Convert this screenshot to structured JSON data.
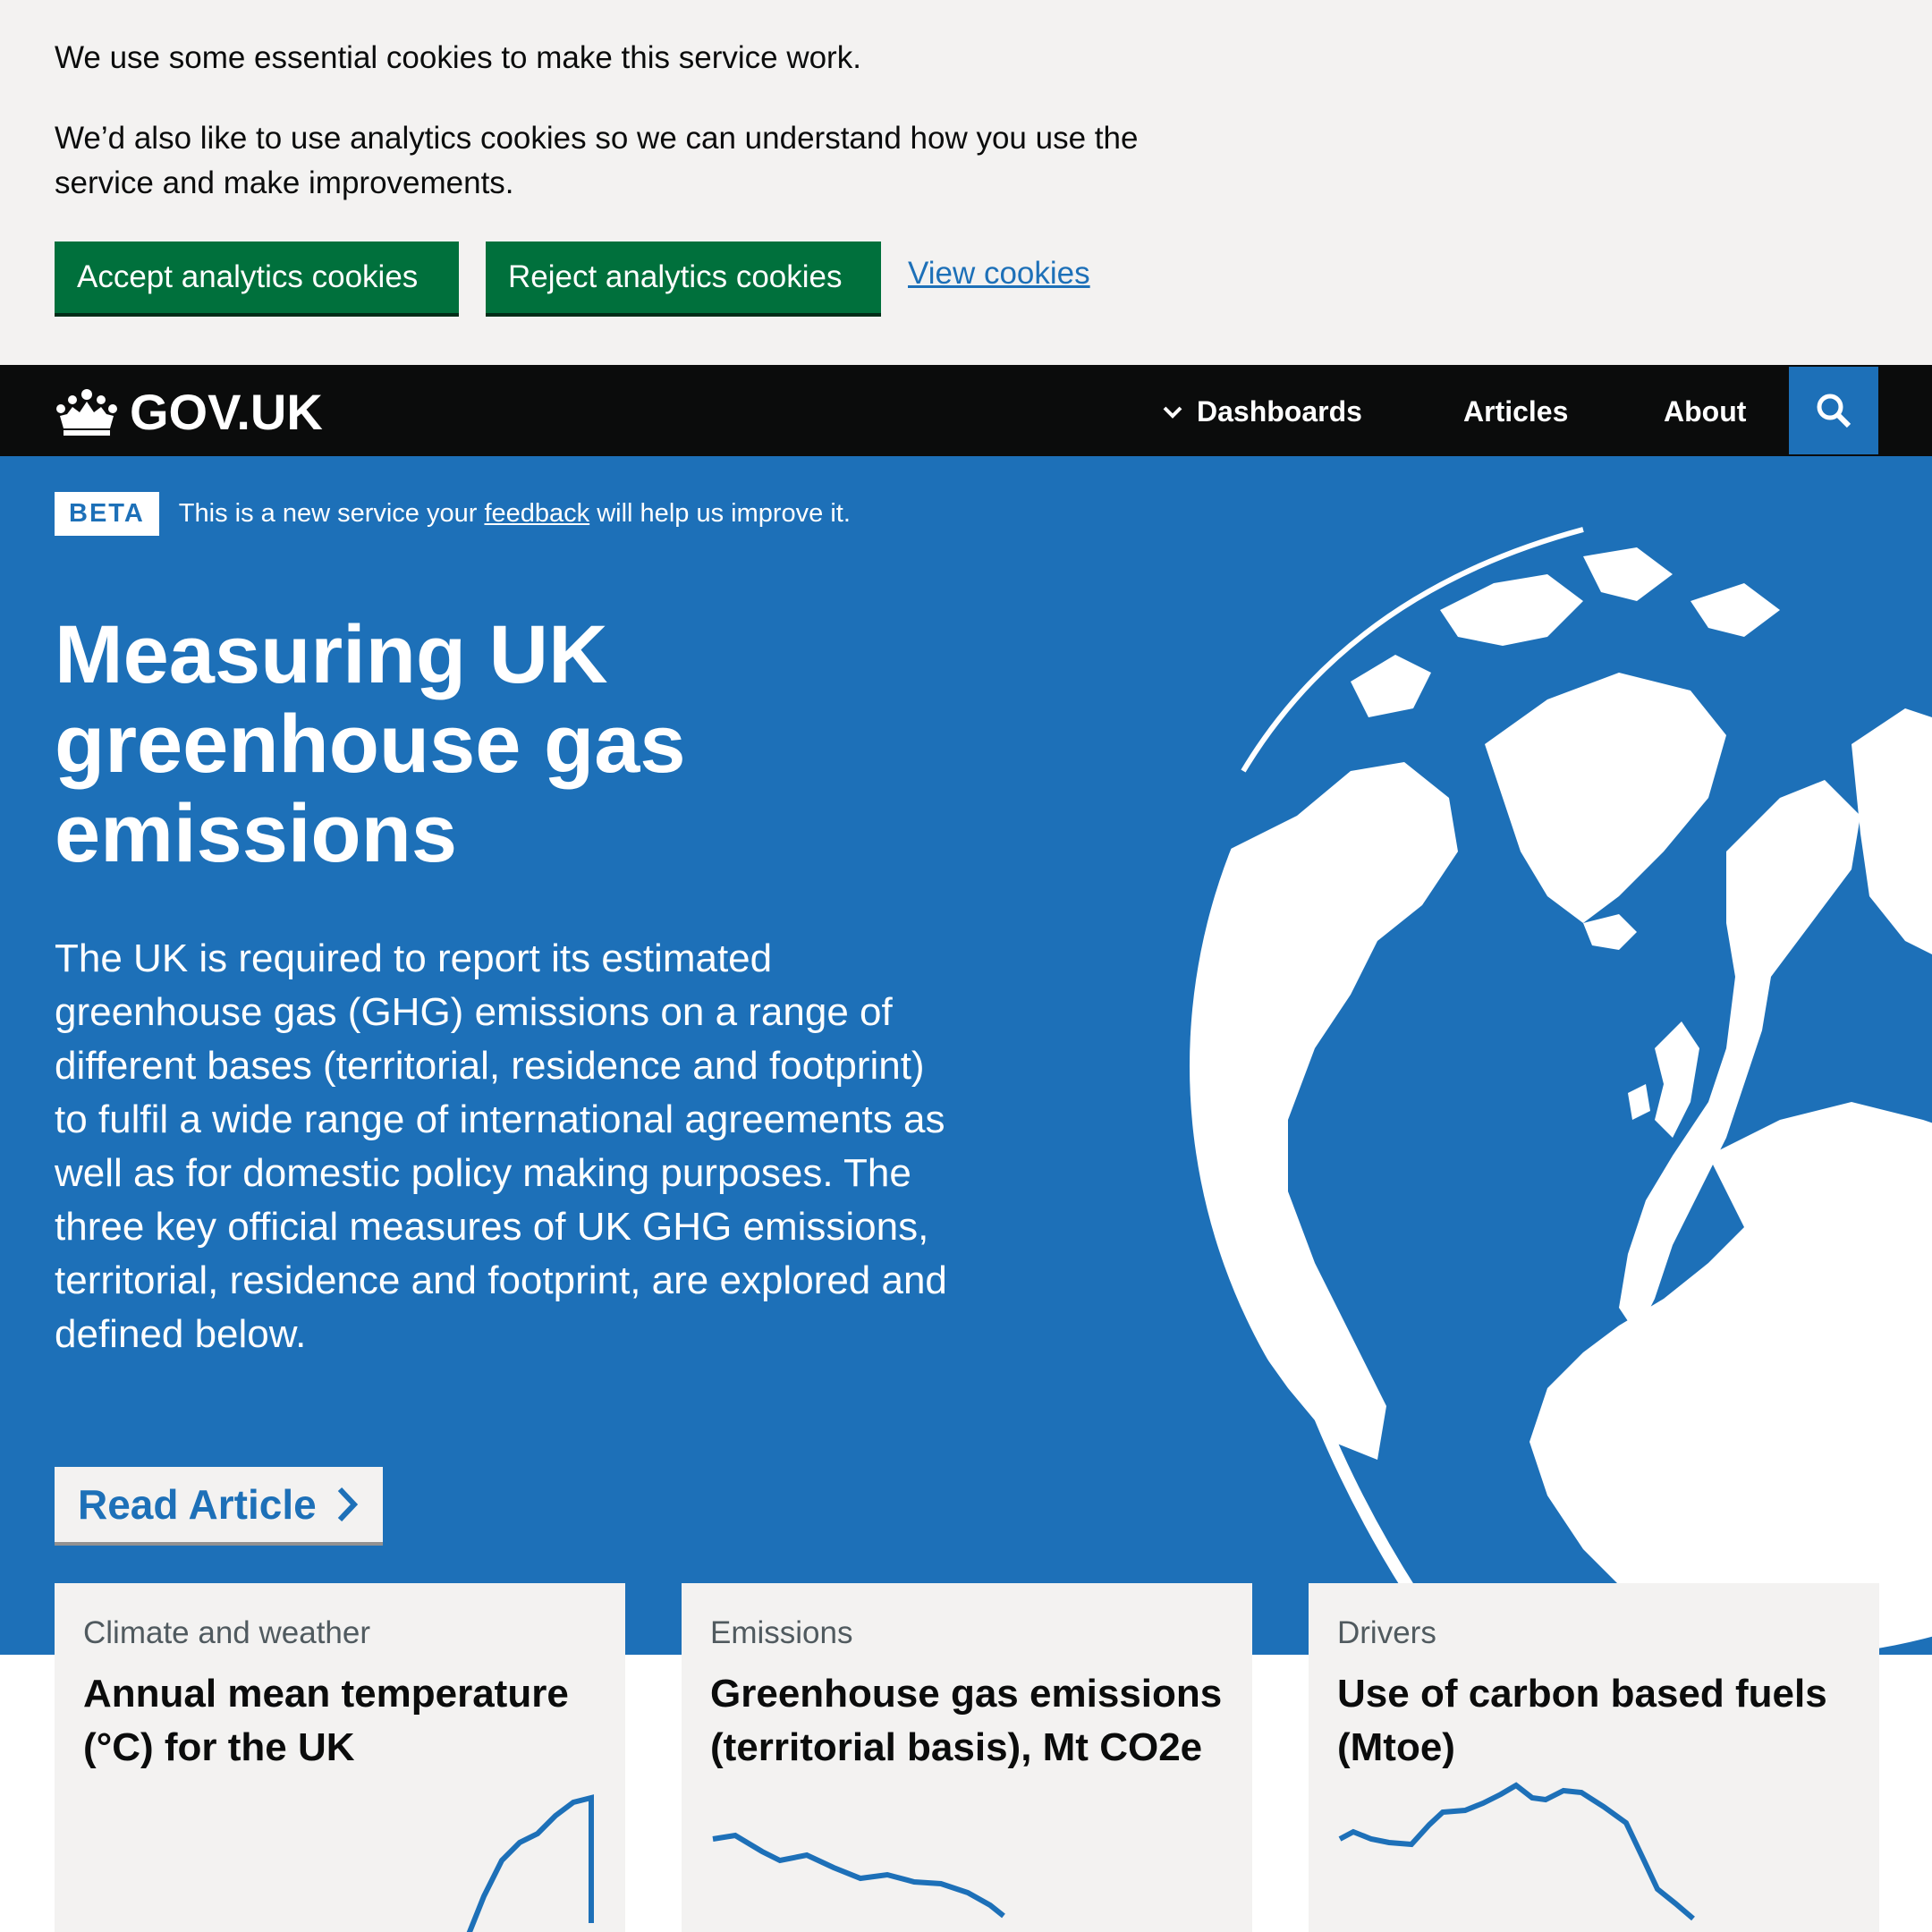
{
  "cookie_banner": {
    "line1": "We use some essential cookies to make this service work.",
    "line2": "We’d also like to use analytics cookies so we can understand how you use the service and make improvements.",
    "accept_label": "Accept analytics cookies",
    "reject_label": "Reject analytics cookies",
    "view_label": "View cookies"
  },
  "header": {
    "logo_text": "GOV.UK",
    "logo_icon": "crown-icon",
    "nav": [
      {
        "label": "Dashboards",
        "icon": "chevron-down-icon"
      },
      {
        "label": "Articles"
      },
      {
        "label": "About"
      }
    ],
    "search_icon": "search-icon"
  },
  "beta": {
    "tag": "BETA",
    "text_before": "This is a new service your ",
    "link": "feedback",
    "text_after": " will help us improve it."
  },
  "hero": {
    "title": "Measuring UK greenhouse gas emissions",
    "body": "The UK is required to report its estimated greenhouse gas (GHG) emissions on a range of different bases (territorial, residence and footprint) to fulfil a wide range of international agreements as well as for domestic policy making purposes. The three key official measures of UK GHG emissions, territorial, residence and footprint, are explored and defined below.",
    "button_label": "Read Article",
    "button_icon": "chevron-right-icon"
  },
  "cards": [
    {
      "category": "Climate and weather",
      "title": "Annual mean temperature (°C) for the UK"
    },
    {
      "category": "Emissions",
      "title": "Greenhouse gas emissions (territorial basis), Mt CO2e"
    },
    {
      "category": "Drivers",
      "title": "Use of carbon based fuels (Mtoe)"
    }
  ],
  "colors": {
    "brand_blue": "#1d70b8",
    "header_black": "#0b0c0c",
    "button_green": "#00703c",
    "accent_yellow": "#ffdd00",
    "card_grey": "#f3f2f1"
  }
}
